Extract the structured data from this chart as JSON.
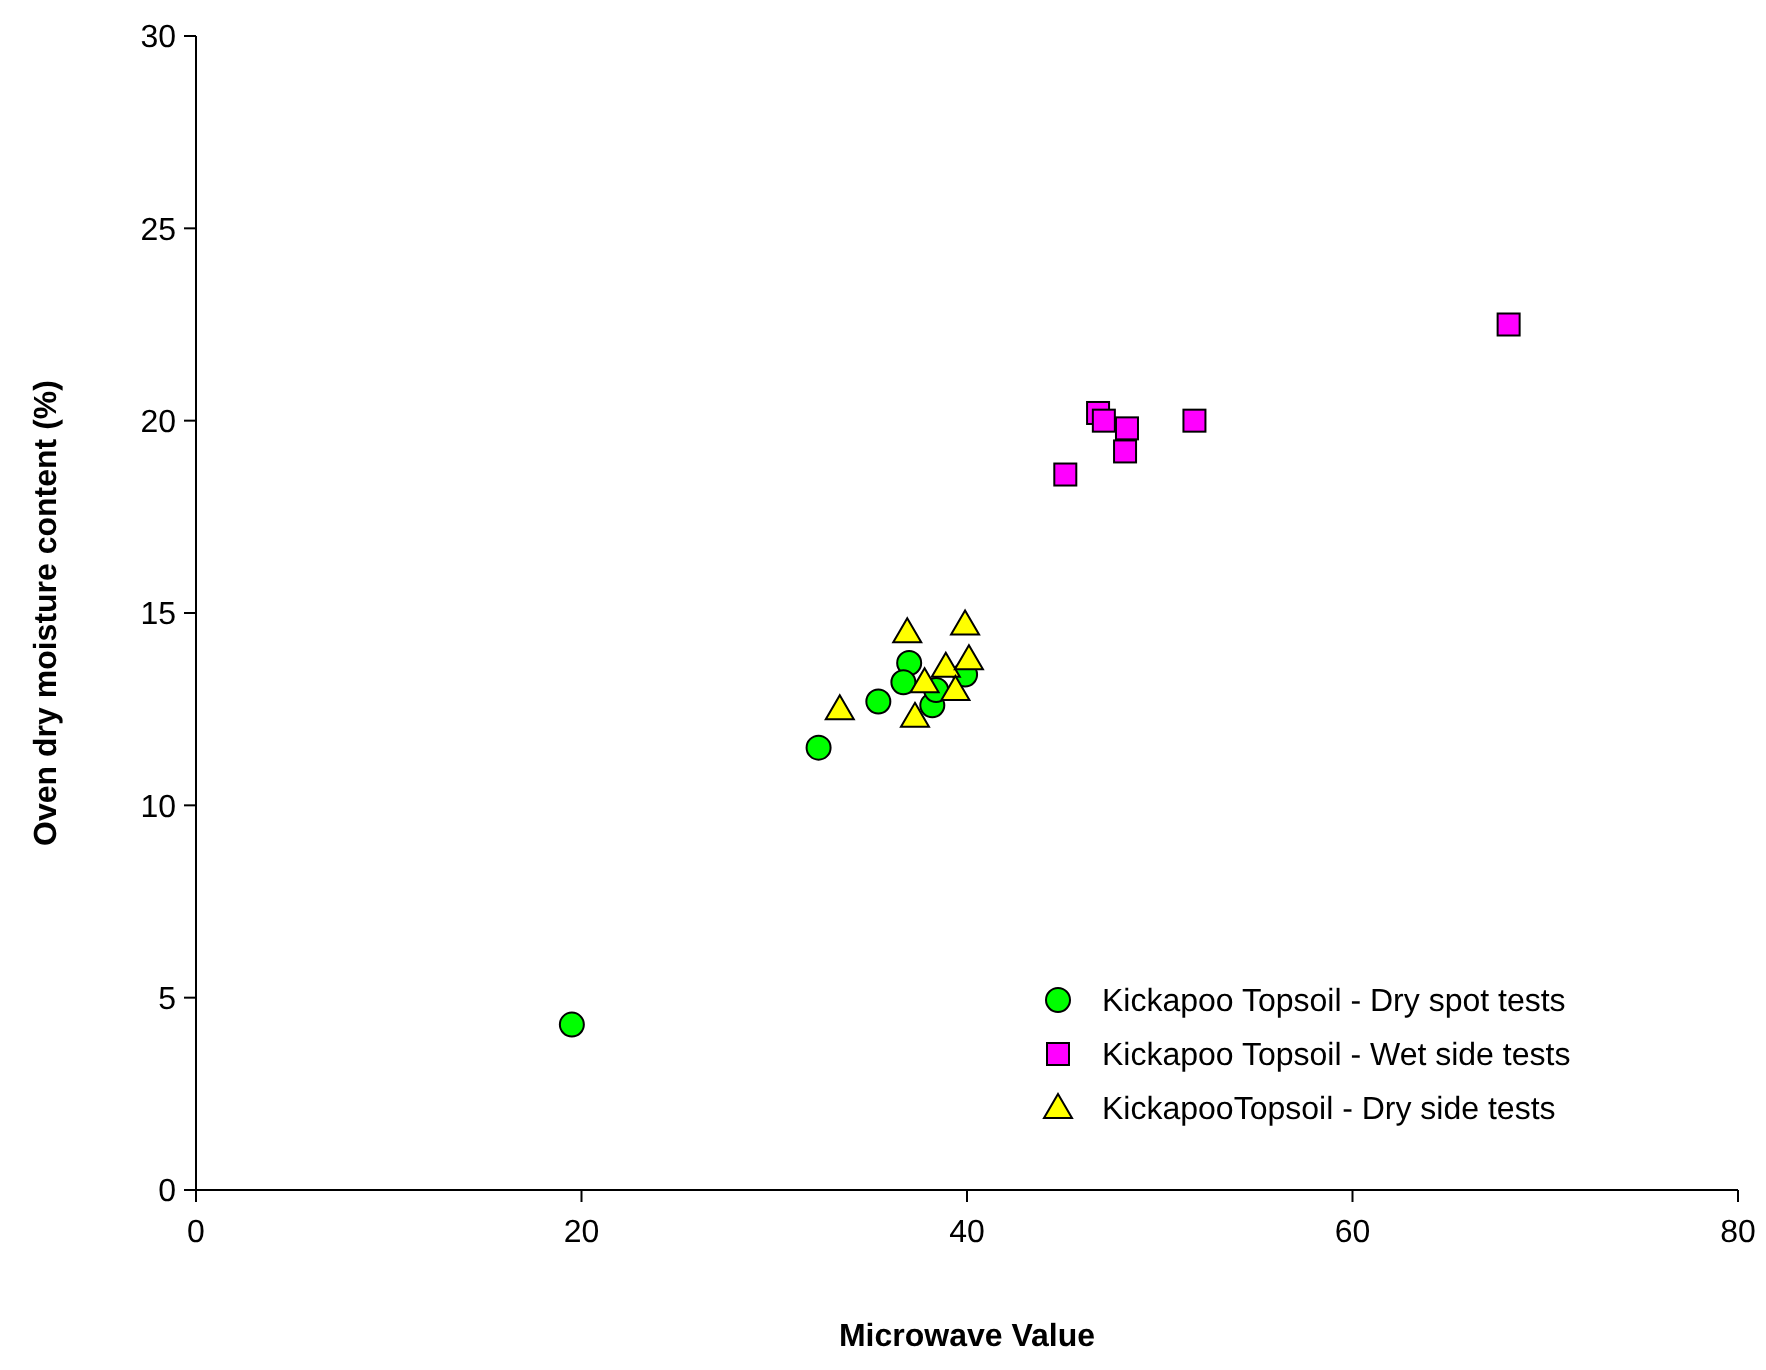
{
  "chart_data": {
    "type": "scatter",
    "xlabel": "Microwave Value",
    "ylabel": "Oven dry moisture content (%)",
    "xlim": [
      0,
      80
    ],
    "ylim": [
      0,
      30
    ],
    "xticks": [
      0,
      20,
      40,
      60,
      80
    ],
    "yticks": [
      0,
      5,
      10,
      15,
      20,
      25,
      30
    ],
    "grid": false,
    "legend": "bottom right",
    "series": [
      {
        "name": "Kickapoo Topsoil - Dry spot tests",
        "color": "#00ff00",
        "marker": "circle",
        "x": [
          19.5,
          32.3,
          35.4,
          37.0,
          36.7,
          38.2,
          39.9,
          38.4
        ],
        "values": [
          4.3,
          11.5,
          12.7,
          13.7,
          13.2,
          12.6,
          13.4,
          13.0
        ]
      },
      {
        "name": "Kickapoo Topsoil - Wet side tests",
        "color": "#ff00ff",
        "marker": "square",
        "x": [
          46.8,
          47.1,
          48.3,
          48.2,
          51.8,
          45.1,
          68.1
        ],
        "values": [
          20.2,
          20.0,
          19.8,
          19.2,
          20.0,
          18.6,
          22.5
        ]
      },
      {
        "name": "KickapooTopsoil - Dry side tests",
        "color": "#ffff00",
        "marker": "triangle",
        "x": [
          33.4,
          36.9,
          39.9,
          37.8,
          38.9,
          40.1,
          39.4,
          37.3
        ],
        "values": [
          12.5,
          14.5,
          14.7,
          13.2,
          13.6,
          13.8,
          13.0,
          12.3
        ]
      }
    ]
  }
}
